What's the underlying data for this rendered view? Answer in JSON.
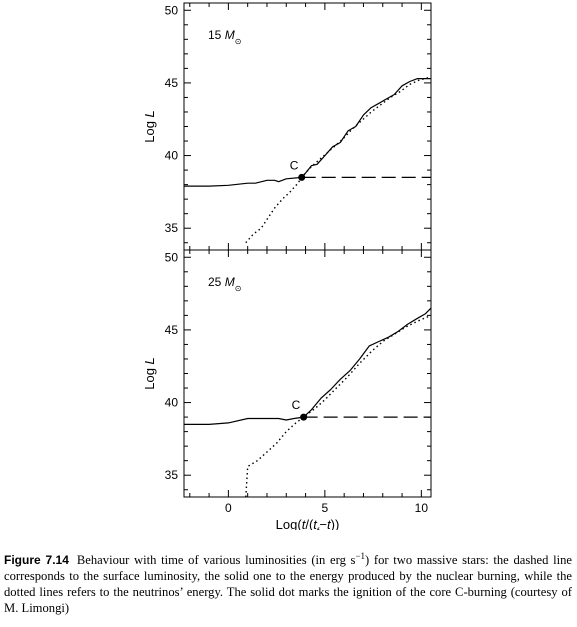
{
  "chart_data": [
    {
      "type": "line",
      "panel_label": "15",
      "panel_unit": "M",
      "panel_unit_sub": "⊙",
      "ylabel_base": "Log ",
      "ylabel_var": "L",
      "ylim": [
        33.5,
        50.5
      ],
      "xlim": [
        -2.3,
        10.5
      ],
      "yticks": [
        35,
        40,
        45,
        50
      ],
      "xticks": [
        0,
        5,
        10
      ],
      "marker": {
        "label": "C",
        "x": 3.8,
        "y": 38.5
      },
      "series": [
        {
          "style": "solid",
          "points": [
            [
              -2.3,
              37.9
            ],
            [
              -1.0,
              37.9
            ],
            [
              0.0,
              37.95
            ],
            [
              1.0,
              38.1
            ],
            [
              1.4,
              38.1
            ],
            [
              2.0,
              38.3
            ],
            [
              2.4,
              38.3
            ],
            [
              2.6,
              38.2
            ],
            [
              3.0,
              38.4
            ],
            [
              3.8,
              38.5
            ],
            [
              4.0,
              38.8
            ],
            [
              4.3,
              39.3
            ],
            [
              4.6,
              39.4
            ],
            [
              5.0,
              40.0
            ],
            [
              5.4,
              40.6
            ],
            [
              5.8,
              40.9
            ],
            [
              6.2,
              41.7
            ],
            [
              6.6,
              42.0
            ],
            [
              7.0,
              42.8
            ],
            [
              7.4,
              43.3
            ],
            [
              7.8,
              43.6
            ],
            [
              8.2,
              43.9
            ],
            [
              8.6,
              44.2
            ],
            [
              9.0,
              44.8
            ],
            [
              9.4,
              45.1
            ],
            [
              9.8,
              45.3
            ],
            [
              10.2,
              45.3
            ],
            [
              10.5,
              45.3
            ]
          ]
        },
        {
          "style": "dashed",
          "points": [
            [
              3.8,
              38.5
            ],
            [
              10.5,
              38.5
            ]
          ]
        },
        {
          "style": "dotted",
          "points": [
            [
              0.9,
              34.0
            ],
            [
              1.3,
              34.6
            ],
            [
              1.7,
              35.0
            ],
            [
              2.1,
              35.8
            ],
            [
              2.4,
              36.4
            ],
            [
              2.8,
              37.0
            ],
            [
              3.2,
              37.5
            ],
            [
              3.6,
              38.1
            ],
            [
              3.8,
              38.5
            ],
            [
              4.2,
              39.1
            ],
            [
              4.7,
              39.7
            ],
            [
              5.3,
              40.4
            ],
            [
              5.9,
              41.1
            ],
            [
              6.4,
              41.8
            ],
            [
              6.9,
              42.4
            ],
            [
              7.4,
              43.0
            ],
            [
              7.9,
              43.5
            ],
            [
              8.4,
              44.0
            ],
            [
              8.9,
              44.4
            ],
            [
              9.4,
              44.9
            ],
            [
              9.9,
              45.2
            ],
            [
              10.5,
              45.4
            ]
          ]
        }
      ]
    },
    {
      "type": "line",
      "panel_label": "25",
      "panel_unit": "M",
      "panel_unit_sub": "⊙",
      "ylabel_base": "Log ",
      "ylabel_var": "L",
      "ylim": [
        33.5,
        50.5
      ],
      "xlim": [
        -2.3,
        10.5
      ],
      "yticks": [
        35,
        40,
        45,
        50
      ],
      "xticks": [
        0,
        5,
        10
      ],
      "xlabel_parts": [
        "Log(",
        "t",
        "/(",
        "t",
        "f",
        "−",
        "t",
        "))"
      ],
      "marker": {
        "label": "C",
        "x": 3.9,
        "y": 39.0
      },
      "series": [
        {
          "style": "solid",
          "points": [
            [
              -2.3,
              38.5
            ],
            [
              -1.0,
              38.5
            ],
            [
              0.0,
              38.6
            ],
            [
              1.0,
              38.9
            ],
            [
              1.6,
              38.9
            ],
            [
              2.6,
              38.9
            ],
            [
              3.0,
              38.8
            ],
            [
              3.4,
              38.9
            ],
            [
              3.9,
              39.0
            ],
            [
              4.3,
              39.5
            ],
            [
              4.8,
              40.3
            ],
            [
              5.3,
              40.9
            ],
            [
              5.8,
              41.6
            ],
            [
              6.3,
              42.2
            ],
            [
              6.8,
              43.0
            ],
            [
              7.3,
              43.9
            ],
            [
              7.8,
              44.2
            ],
            [
              8.3,
              44.5
            ],
            [
              8.8,
              44.9
            ],
            [
              9.3,
              45.4
            ],
            [
              9.8,
              45.8
            ],
            [
              10.2,
              46.1
            ],
            [
              10.5,
              46.5
            ]
          ]
        },
        {
          "style": "dashed",
          "points": [
            [
              3.9,
              39.0
            ],
            [
              10.5,
              39.0
            ]
          ]
        },
        {
          "style": "dotted",
          "points": [
            [
              0.9,
              33.5
            ],
            [
              1.0,
              35.6
            ],
            [
              1.5,
              36.0
            ],
            [
              2.0,
              36.6
            ],
            [
              2.5,
              37.2
            ],
            [
              3.0,
              38.0
            ],
            [
              3.5,
              38.6
            ],
            [
              3.9,
              39.0
            ],
            [
              4.5,
              39.6
            ],
            [
              5.0,
              40.2
            ],
            [
              5.6,
              41.0
            ],
            [
              6.2,
              41.8
            ],
            [
              6.8,
              42.7
            ],
            [
              7.4,
              43.5
            ],
            [
              8.0,
              44.2
            ],
            [
              8.6,
              44.7
            ],
            [
              9.2,
              45.2
            ],
            [
              9.8,
              45.6
            ],
            [
              10.5,
              46.0
            ]
          ]
        }
      ]
    }
  ],
  "caption": {
    "label": "Figure 7.14",
    "text_1": "Behaviour with time of various luminosities (in erg s",
    "text_sup": "−1",
    "text_2": ") for two massive stars: the dashed line corresponds to the surface luminosity, the solid one to the energy produced by the nuclear burning, while the dotted lines refers to the neutrinos’ energy. The solid dot marks the ignition of the core C-burning (courtesy of M. Limongi)"
  }
}
